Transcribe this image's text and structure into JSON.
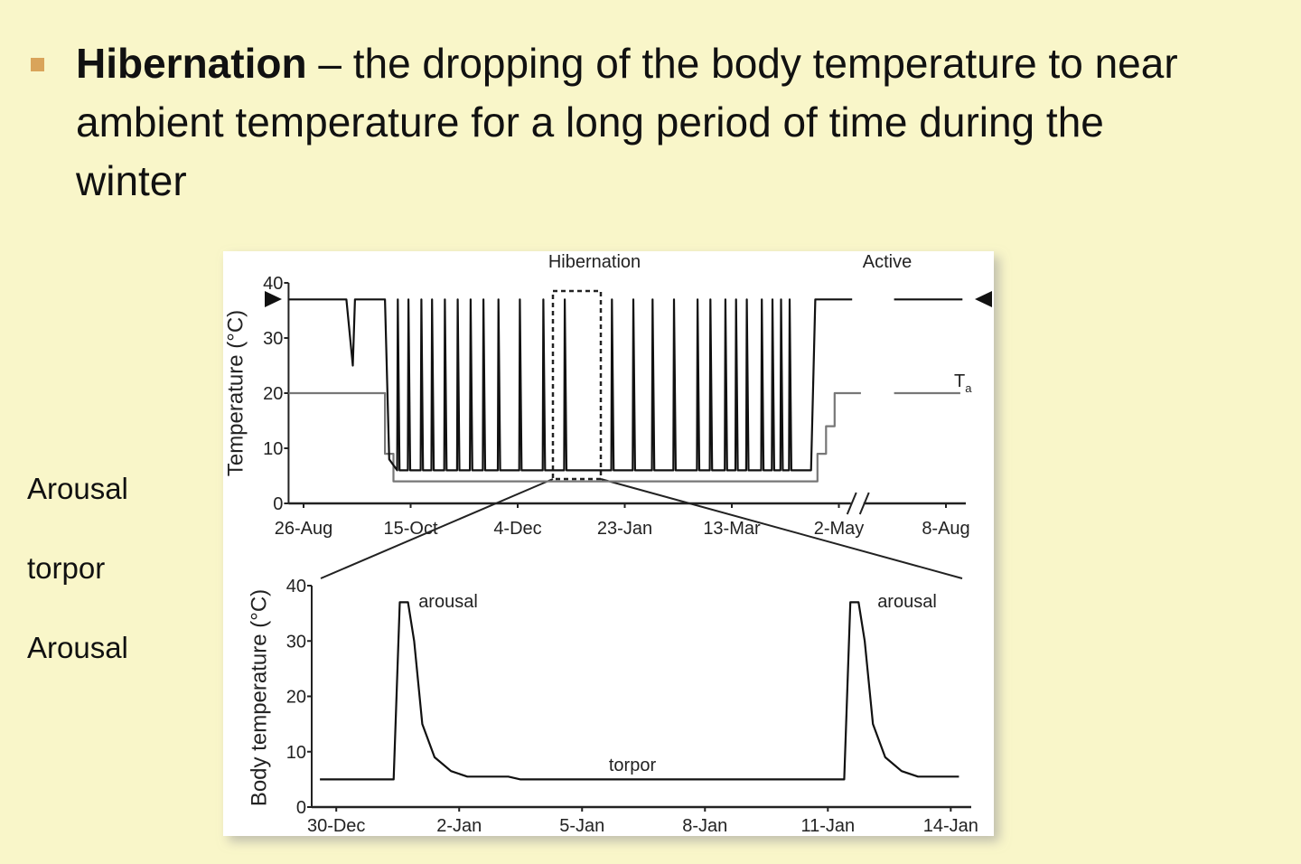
{
  "bullet": {
    "term": "Hibernation",
    "text": "– the dropping of the body temperature to near ambient temperature for a long period of time during the winter"
  },
  "side_labels": [
    "Arousal",
    "torpor",
    "Arousal"
  ],
  "chart_data": [
    {
      "type": "line",
      "ylabel": "Temperature (°C)",
      "annotations": [
        "Hibernation",
        "Active"
      ],
      "ambient_label": {
        "text": "T",
        "sub": "a"
      },
      "axis_break": true,
      "xlim": [
        -7,
        365
      ],
      "xticks": [
        {
          "value": 0,
          "label": "26-Aug"
        },
        {
          "value": 50,
          "label": "15-Oct"
        },
        {
          "value": 100,
          "label": "4-Dec"
        },
        {
          "value": 150,
          "label": "23-Jan"
        },
        {
          "value": 200,
          "label": "13-Mar"
        },
        {
          "value": 250,
          "label": "2-May"
        },
        {
          "value": 347,
          "label": "8-Aug"
        }
      ],
      "ylim": [
        0,
        40
      ],
      "yticks": [
        0,
        10,
        20,
        30,
        40
      ],
      "series": [
        {
          "color": "#777777",
          "x": [
            -7,
            38,
            38,
            42,
            42,
            240,
            240,
            244,
            244,
            248,
            248,
            270,
            null,
            300,
            360
          ],
          "values": [
            20,
            20,
            9,
            9,
            4,
            4,
            9,
            9,
            14,
            14,
            20,
            20,
            null,
            20,
            20
          ]
        },
        {
          "color": "#111111",
          "x": [
            -7,
            20,
            23,
            24,
            38,
            40,
            43.7,
            44,
            44.8,
            48.7,
            49,
            49.8,
            54.7,
            55,
            55.8,
            59.7,
            60,
            60.8,
            65.7,
            66,
            66.8,
            71.7,
            72,
            72.8,
            77.7,
            78,
            78.8,
            83.7,
            84,
            84.8,
            90.7,
            91,
            91.8,
            100.7,
            101,
            101.8,
            111.7,
            112,
            112.8,
            121.7,
            122,
            122.8,
            143.7,
            144,
            144.8,
            153.7,
            154,
            154.8,
            162.7,
            163,
            163.8,
            172.7,
            173,
            173.8,
            183.7,
            184,
            184.8,
            189.7,
            190,
            190.8,
            196.7,
            197,
            197.8,
            201.7,
            202,
            202.8,
            206.7,
            207,
            207.8,
            213.7,
            214,
            214.8,
            218.7,
            219,
            219.8,
            222.7,
            223,
            223.8,
            226.7,
            227,
            227.8,
            237,
            239,
            262,
            null,
            300,
            362
          ],
          "values": [
            37,
            37,
            25,
            37,
            37,
            8,
            6,
            37,
            6,
            6,
            37,
            6,
            6,
            37,
            6,
            6,
            37,
            6,
            6,
            37,
            6,
            6,
            37,
            6,
            6,
            37,
            6,
            6,
            37,
            6,
            6,
            37,
            6,
            6,
            37,
            6,
            6,
            37,
            6,
            6,
            37,
            6,
            6,
            37,
            6,
            6,
            37,
            6,
            6,
            37,
            6,
            6,
            37,
            6,
            6,
            37,
            6,
            6,
            37,
            6,
            6,
            37,
            6,
            6,
            37,
            6,
            6,
            37,
            6,
            6,
            37,
            6,
            6,
            37,
            6,
            6,
            37,
            6,
            6,
            37,
            6,
            6,
            37,
            37,
            null,
            37,
            37
          ]
        }
      ]
    },
    {
      "type": "line",
      "ylabel": "Body temperature (°C)",
      "annotations": [
        "arousal",
        "torpor",
        "arousal"
      ],
      "xlim": [
        -0.6,
        15.5
      ],
      "xticks": [
        {
          "value": 0,
          "label": "30-Dec"
        },
        {
          "value": 3,
          "label": "2-Jan"
        },
        {
          "value": 6,
          "label": "5-Jan"
        },
        {
          "value": 9,
          "label": "8-Jan"
        },
        {
          "value": 12,
          "label": "11-Jan"
        },
        {
          "value": 15,
          "label": "14-Jan"
        }
      ],
      "ylim": [
        0,
        40
      ],
      "yticks": [
        0,
        10,
        20,
        30,
        40
      ],
      "series": [
        {
          "color": "#111111",
          "x": [
            -0.4,
            1.4,
            1.55,
            1.75,
            1.9,
            2.1,
            2.4,
            2.8,
            3.2,
            4.2,
            4.5,
            12.4,
            12.55,
            12.75,
            12.9,
            13.1,
            13.4,
            13.8,
            14.2,
            15.2
          ],
          "values": [
            5,
            5,
            37,
            37,
            30,
            15,
            9,
            6.5,
            5.5,
            5.5,
            5,
            5,
            37,
            37,
            30,
            15,
            9,
            6.5,
            5.5,
            5.5
          ]
        }
      ]
    }
  ]
}
